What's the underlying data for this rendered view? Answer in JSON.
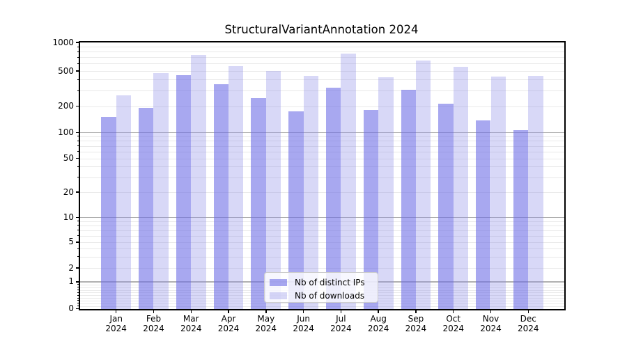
{
  "title": "StructuralVariantAnnotation 2024",
  "legend": {
    "items": [
      {
        "label": "Nb of distinct IPs",
        "color": "rgba(110,110,230,0.6)",
        "apparent_hex": "#a8a8f0"
      },
      {
        "label": "Nb of downloads",
        "color": "rgba(144,144,232,0.35)",
        "apparent_hex": "#d8d8f7"
      }
    ]
  },
  "chart_data": {
    "type": "bar",
    "title": "StructuralVariantAnnotation 2024",
    "categories": [
      "Jan 2024",
      "Feb 2024",
      "Mar 2024",
      "Apr 2024",
      "May 2024",
      "Jun 2024",
      "Jul 2024",
      "Aug 2024",
      "Sep 2024",
      "Oct 2024",
      "Nov 2024",
      "Dec 2024"
    ],
    "month_line1": [
      "Jan",
      "Feb",
      "Mar",
      "Apr",
      "May",
      "Jun",
      "Jul",
      "Aug",
      "Sep",
      "Oct",
      "Nov",
      "Dec"
    ],
    "month_line2": "2024",
    "series": [
      {
        "name": "Nb of distinct IPs",
        "values": [
          150,
          192,
          449,
          356,
          249,
          174,
          324,
          182,
          308,
          213,
          137,
          107
        ],
        "color": "rgba(110,110,230,0.6)"
      },
      {
        "name": "Nb of downloads",
        "values": [
          265,
          473,
          743,
          567,
          500,
          440,
          762,
          427,
          640,
          555,
          430,
          444
        ],
        "color": "rgba(144,144,232,0.35)"
      }
    ],
    "y_axis": {
      "scale": "symlog",
      "tick_values": [
        1000,
        500,
        200,
        100,
        50,
        20,
        10,
        5,
        2,
        1,
        0
      ],
      "tick_labels": [
        "1000",
        "500",
        "200",
        "100",
        "50",
        "20",
        "10",
        "5",
        "2",
        "1",
        "0"
      ],
      "major_gridlines": [
        100,
        10,
        1
      ],
      "minor_gridlines": [
        900,
        800,
        700,
        600,
        500,
        400,
        300,
        200,
        90,
        80,
        70,
        60,
        50,
        40,
        30,
        20,
        9,
        8,
        7,
        6,
        5,
        4,
        3,
        2,
        0.9,
        0.8,
        0.7,
        0.6,
        0.5,
        0.4,
        0.3,
        0.2,
        0.1
      ],
      "range": [
        0,
        1000
      ]
    },
    "xlabel": "",
    "ylabel": "",
    "grid": true,
    "legend_position": "lower center"
  },
  "colors": {
    "ips_bar": "rgba(110,110,230,0.6)",
    "downloads_bar": "rgba(144,144,232,0.35)",
    "major_grid": "#b0b0b0",
    "minor_grid": "#e9e9e9",
    "spine": "#000000"
  }
}
